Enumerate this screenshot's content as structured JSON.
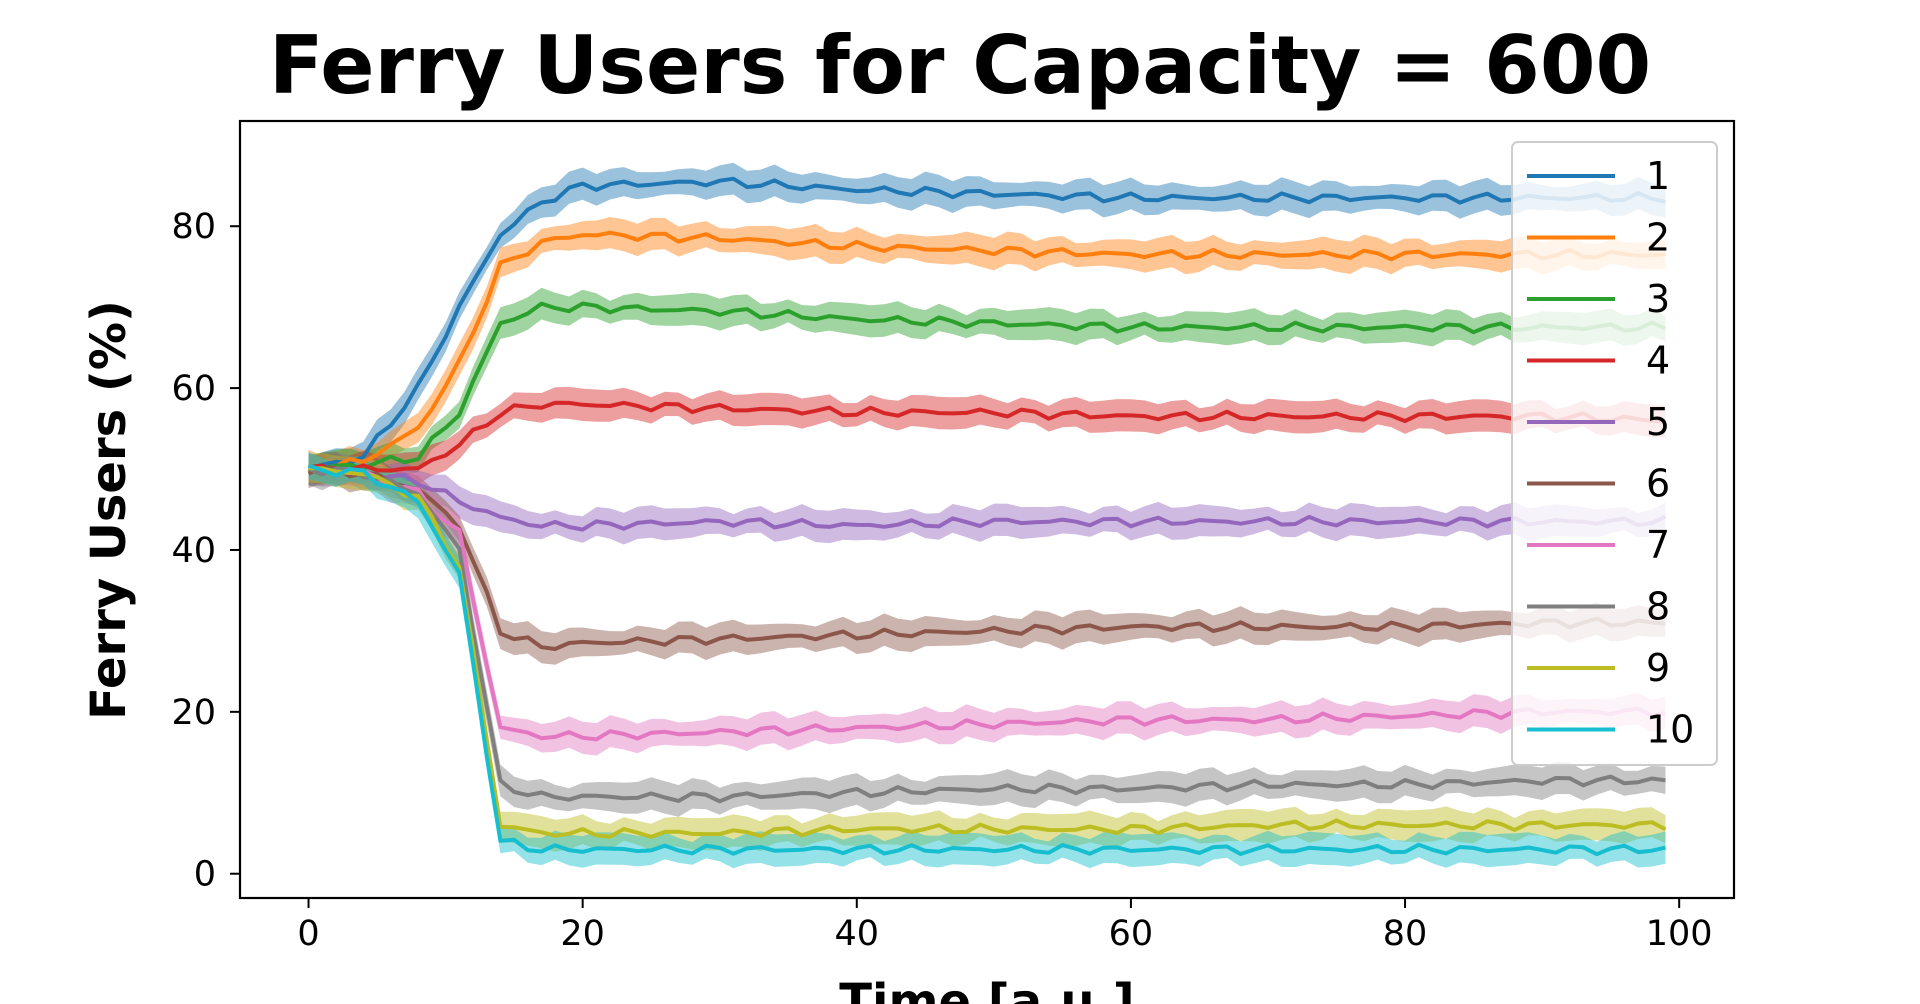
{
  "chart_data": {
    "type": "line",
    "title": "Ferry Users for Capacity = 600",
    "xlabel": "Time [a.u.]",
    "ylabel": "Ferry Users (%)",
    "xlim": [
      -5,
      104
    ],
    "ylim": [
      -3,
      93
    ],
    "xticks": [
      0,
      20,
      40,
      60,
      80,
      100
    ],
    "yticks": [
      0,
      20,
      40,
      60,
      80
    ],
    "grid": false,
    "legend_position": "upper-right",
    "shaded_band": "variability band around each series",
    "x": [
      0,
      4,
      8,
      11,
      14,
      17,
      20,
      30,
      40,
      50,
      60,
      70,
      80,
      90,
      99
    ],
    "series": [
      {
        "name": "1",
        "color": "#1f77b4",
        "values": [
          50,
          51.5,
          60,
          70,
          79,
          83,
          85,
          85.5,
          84.5,
          84,
          83.5,
          83.5,
          83.5,
          83.5,
          83.5
        ]
      },
      {
        "name": "2",
        "color": "#ff7f0e",
        "values": [
          50,
          51,
          55,
          63,
          75,
          78,
          79,
          78.5,
          77.5,
          77,
          76.5,
          76.5,
          76.5,
          76.5,
          76.5
        ]
      },
      {
        "name": "3",
        "color": "#2ca02c",
        "values": [
          50,
          50.5,
          51.5,
          57,
          68,
          70,
          70,
          69.5,
          68.5,
          68,
          67.5,
          67.5,
          67.5,
          67.5,
          67.5
        ]
      },
      {
        "name": "4",
        "color": "#d62728",
        "values": [
          50,
          50,
          50,
          53,
          57,
          58,
          58,
          57.5,
          57,
          57,
          56.5,
          56.5,
          56.5,
          56.5,
          56
        ]
      },
      {
        "name": "5",
        "color": "#9467bd",
        "values": [
          50,
          49.5,
          48.5,
          46,
          44,
          43,
          43,
          43.5,
          43,
          43.5,
          43.5,
          43.5,
          43.5,
          43.5,
          43.5
        ]
      },
      {
        "name": "6",
        "color": "#8c564b",
        "values": [
          50,
          49.5,
          47.5,
          43,
          30,
          28,
          28.5,
          29,
          29.5,
          30,
          30.5,
          30.5,
          30.5,
          31,
          31
        ]
      },
      {
        "name": "7",
        "color": "#e377c2",
        "values": [
          50,
          49.5,
          47,
          42,
          18,
          17,
          17,
          17.5,
          18,
          18.5,
          19,
          19,
          19.5,
          20,
          20
        ]
      },
      {
        "name": "8",
        "color": "#7f7f7f",
        "values": [
          50,
          49.5,
          47,
          40,
          11,
          9.5,
          9.5,
          9.5,
          10,
          10.5,
          10.5,
          11,
          11,
          11.5,
          11.5
        ]
      },
      {
        "name": "9",
        "color": "#bcbd22",
        "values": [
          50,
          49.5,
          46.5,
          38,
          6,
          5,
          5,
          5,
          5.5,
          5.5,
          5.5,
          6,
          6,
          6,
          6
        ]
      },
      {
        "name": "10",
        "color": "#17becf",
        "values": [
          50,
          49.5,
          46,
          37,
          4,
          3,
          3,
          3,
          3,
          3,
          3,
          3,
          3,
          3,
          3
        ]
      }
    ]
  }
}
